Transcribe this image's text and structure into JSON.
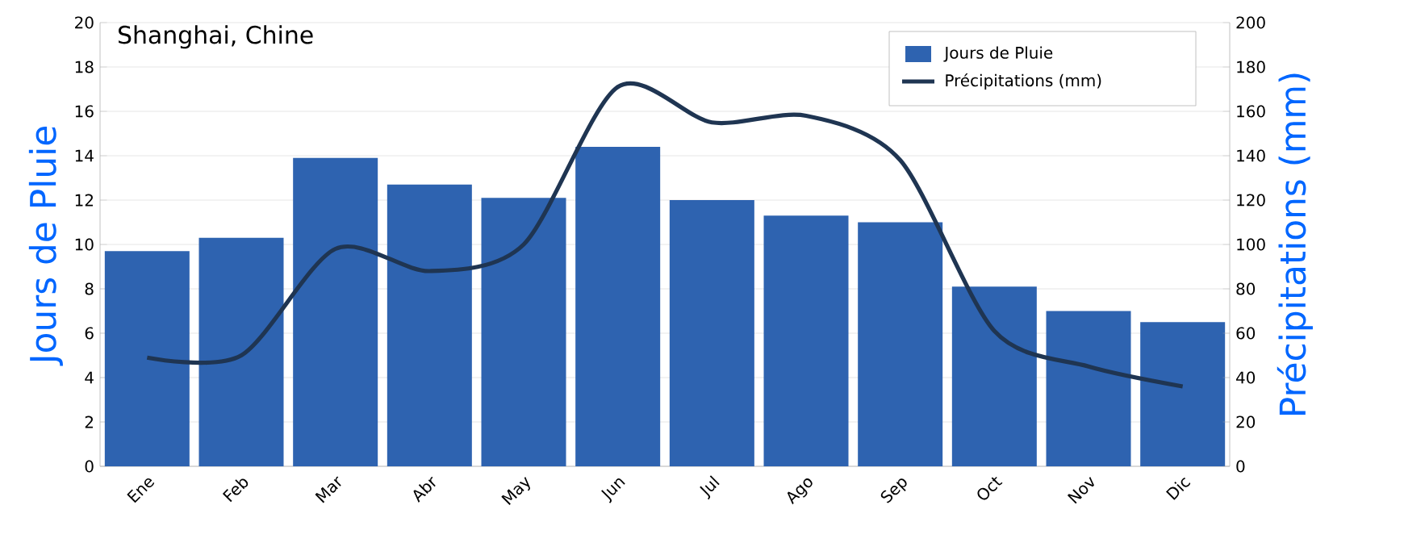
{
  "chart_data": {
    "type": "bar",
    "title": "Shanghai, Chine",
    "ylabel": "Jours de Pluie",
    "y2label": "Précipitations (mm)",
    "categories": [
      "Ene",
      "Feb",
      "Mar",
      "Abr",
      "May",
      "Jun",
      "Jul",
      "Ago",
      "Sep",
      "Oct",
      "Nov",
      "Dic"
    ],
    "series": [
      {
        "name": "Jours de Pluie",
        "color": "#2e63b0",
        "values": [
          9.7,
          10.3,
          13.9,
          12.7,
          12.1,
          14.4,
          12.0,
          11.3,
          11.0,
          8.1,
          7.0,
          6.5
        ]
      },
      {
        "name": "Précipitations (mm)",
        "type": "line",
        "axis": "y2",
        "color": "#1f3552",
        "values": [
          49,
          50,
          98,
          88,
          100,
          171,
          155,
          158,
          138,
          61,
          45,
          36
        ]
      }
    ],
    "ylim": [
      0,
      20
    ],
    "yticks": [
      0,
      2,
      4,
      6,
      8,
      10,
      12,
      14,
      16,
      18,
      20
    ],
    "y2lim": [
      0,
      200
    ],
    "y2ticks": [
      0,
      20,
      40,
      60,
      80,
      100,
      120,
      140,
      160,
      180,
      200
    ],
    "grid": "y",
    "legend": "top right"
  }
}
